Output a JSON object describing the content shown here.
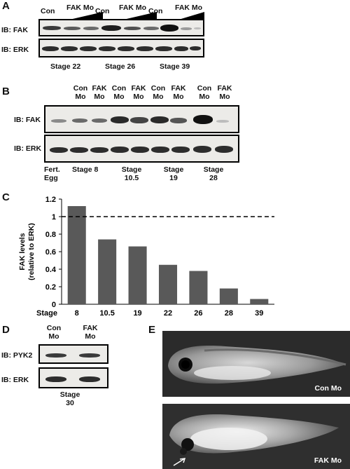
{
  "panelA": {
    "letter": "A",
    "headers": [
      "Con",
      "FAK Mo",
      "Con",
      "FAK Mo",
      "Con",
      "FAK Mo"
    ],
    "row_labels": [
      "IB: FAK",
      "IB: ERK"
    ],
    "stages": [
      "Stage 22",
      "Stage 26",
      "Stage 39"
    ]
  },
  "panelB": {
    "letter": "B",
    "headers": [
      {
        "l1": "Con",
        "l2": "Mo"
      },
      {
        "l1": "FAK",
        "l2": "Mo"
      },
      {
        "l1": "Con",
        "l2": "Mo"
      },
      {
        "l1": "FAK",
        "l2": "Mo"
      },
      {
        "l1": "Con",
        "l2": "Mo"
      },
      {
        "l1": "FAK",
        "l2": "Mo"
      },
      {
        "l1": "Con",
        "l2": "Mo"
      },
      {
        "l1": "FAK",
        "l2": "Mo"
      }
    ],
    "row_labels": [
      "IB: FAK",
      "IB: ERK"
    ],
    "stages": [
      {
        "l1": "Fert.",
        "l2": "Egg"
      },
      {
        "l1": "Stage 8",
        "l2": ""
      },
      {
        "l1": "Stage",
        "l2": "10.5"
      },
      {
        "l1": "Stage",
        "l2": "19"
      },
      {
        "l1": "Stage",
        "l2": "28"
      }
    ]
  },
  "panelC": {
    "letter": "C",
    "chart_data": {
      "type": "bar",
      "title": "",
      "ylabel": "FAK levels (relative to ERK)",
      "ylabel_lines": [
        "FAK levels",
        "(relative to ERK)"
      ],
      "xlabel": "Stage",
      "categories": [
        "8",
        "10.5",
        "19",
        "22",
        "26",
        "28",
        "39"
      ],
      "values": [
        1.12,
        0.74,
        0.66,
        0.45,
        0.38,
        0.18,
        0.06
      ],
      "ylim": [
        0,
        1.2
      ],
      "yticks": [
        "0",
        "0.2",
        "0.4",
        "0.6",
        "0.8",
        "1",
        "1.2"
      ],
      "reference_line": 1,
      "bar_color": "#595959",
      "grid": false
    }
  },
  "panelD": {
    "letter": "D",
    "headers": [
      {
        "l1": "Con",
        "l2": "Mo"
      },
      {
        "l1": "FAK",
        "l2": "Mo"
      }
    ],
    "row_labels": [
      "IB: PYK2",
      "IB: ERK"
    ],
    "stage": {
      "l1": "Stage",
      "l2": "30"
    }
  },
  "panelE": {
    "letter": "E",
    "images": [
      "Con Mo",
      "FAK Mo"
    ]
  }
}
